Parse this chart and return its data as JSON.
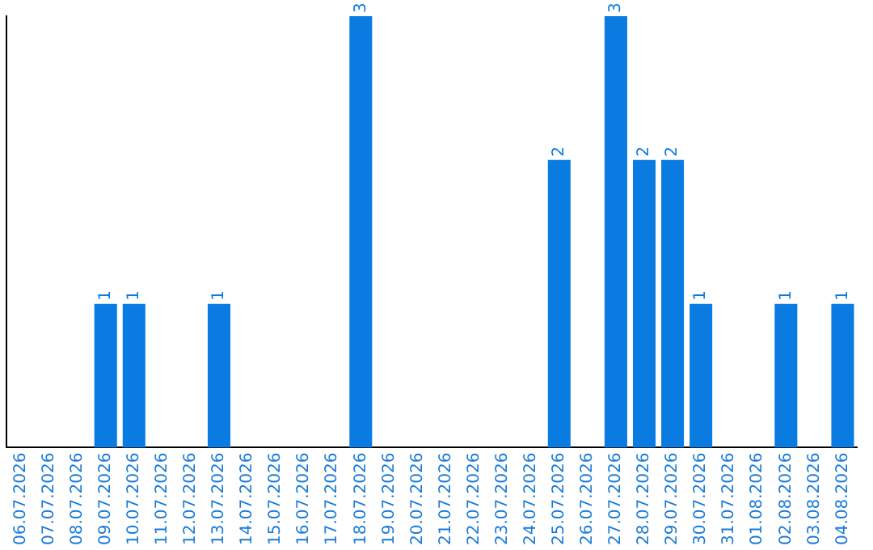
{
  "chart_data": {
    "type": "bar",
    "categories": [
      "06.07.2026",
      "07.07.2026",
      "08.07.2026",
      "09.07.2026",
      "10.07.2026",
      "11.07.2026",
      "12.07.2026",
      "13.07.2026",
      "14.07.2026",
      "15.07.2026",
      "16.07.2026",
      "17.07.2026",
      "18.07.2026",
      "19.07.2026",
      "20.07.2026",
      "21.07.2026",
      "22.07.2026",
      "23.07.2026",
      "24.07.2026",
      "25.07.2026",
      "26.07.2026",
      "27.07.2026",
      "28.07.2026",
      "29.07.2026",
      "30.07.2026",
      "31.07.2026",
      "01.08.2026",
      "02.08.2026",
      "03.08.2026",
      "04.08.2026"
    ],
    "values": [
      0,
      0,
      0,
      1,
      1,
      0,
      0,
      1,
      0,
      0,
      0,
      0,
      3,
      0,
      0,
      0,
      0,
      0,
      0,
      2,
      0,
      3,
      2,
      2,
      1,
      0,
      0,
      1,
      0,
      1
    ],
    "value_labels": [
      null,
      null,
      null,
      "1",
      "1",
      null,
      null,
      "1",
      null,
      null,
      null,
      null,
      "3",
      null,
      null,
      null,
      null,
      null,
      null,
      "2",
      null,
      "3",
      "2",
      "2",
      "1",
      null,
      null,
      "1",
      null,
      "1"
    ],
    "color": "#0a7be0",
    "grid": false,
    "legend": false,
    "tick_labels": "x"
  }
}
